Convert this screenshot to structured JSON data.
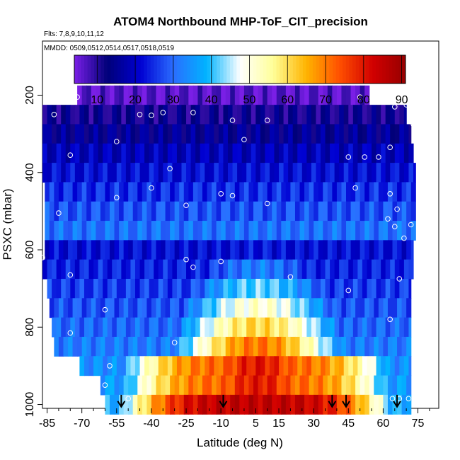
{
  "chart_data": {
    "type": "heatmap",
    "title": "ATOM4 Northbound MHP-ToF_CIT_precision",
    "flights_label": "Flts: 7,8,9,10,11,12",
    "dates_label": "MMDD: 0509,0512,0514,0517,0518,0519",
    "xlabel": "Latitude (deg N)",
    "ylabel": "PSXC (mbar)",
    "xlim": [
      -87,
      84
    ],
    "ylim": [
      1010,
      60
    ],
    "x_ticks": [
      -85,
      -70,
      -55,
      -40,
      -25,
      -10,
      5,
      15,
      30,
      45,
      60,
      75
    ],
    "x_tick_labels": [
      "-85",
      "-70",
      "-55",
      "-40",
      "-25",
      "-10",
      "5",
      "15",
      "30",
      "45",
      "60",
      "75"
    ],
    "y_ticks": [
      200,
      400,
      600,
      800,
      1000
    ],
    "y_tick_labels": [
      "200",
      "400",
      "600",
      "800",
      "1000"
    ],
    "colorbar": {
      "min": 4,
      "max": 91,
      "ticks": [
        10,
        20,
        30,
        40,
        50,
        60,
        70,
        80,
        90
      ],
      "tick_labels": [
        "10",
        "20",
        "30",
        "40",
        "50",
        "60",
        "70",
        "80",
        "90"
      ],
      "colors": [
        "#7a1fe6",
        "#000078",
        "#0000d2",
        "#2a6eff",
        "#00b4ff",
        "#ffffff",
        "#ffff99",
        "#ffb400",
        "#ff5000",
        "#d20000",
        "#960000"
      ]
    },
    "pressure_levels": [
      200,
      250,
      300,
      350,
      400,
      450,
      500,
      550,
      600,
      650,
      700,
      750,
      800,
      850,
      900,
      950,
      1000
    ],
    "row_extents": [
      [
        -72,
        54
      ],
      [
        -87,
        70
      ],
      [
        -87,
        72
      ],
      [
        -87,
        73
      ],
      [
        -87,
        74
      ],
      [
        -86,
        74
      ],
      [
        -86,
        74
      ],
      [
        -86,
        74
      ],
      [
        -86,
        73
      ],
      [
        -87,
        73
      ],
      [
        -85,
        72
      ],
      [
        -84,
        72
      ],
      [
        -83,
        72
      ],
      [
        -82,
        72
      ],
      [
        -71,
        72
      ],
      [
        -62,
        72
      ],
      [
        -60,
        72
      ]
    ],
    "field_description": "precision values (color); blue/purple aloft, warm core near surface between ~-45 and 60 deg N",
    "observation_points": [
      [
        -85,
        210
      ],
      [
        -72,
        205
      ],
      [
        -82,
        250
      ],
      [
        -45,
        250
      ],
      [
        -40,
        252
      ],
      [
        -35,
        245
      ],
      [
        -22,
        245
      ],
      [
        -5,
        265
      ],
      [
        10,
        265
      ],
      [
        0,
        315
      ],
      [
        -55,
        320
      ],
      [
        -75,
        355
      ],
      [
        45,
        360
      ],
      [
        52,
        360
      ],
      [
        58,
        360
      ],
      [
        63,
        335
      ],
      [
        -32,
        390
      ],
      [
        -55,
        465
      ],
      [
        -40,
        440
      ],
      [
        -10,
        455
      ],
      [
        -5,
        460
      ],
      [
        10,
        480
      ],
      [
        -25,
        485
      ],
      [
        48,
        440
      ],
      [
        62,
        520
      ],
      [
        65,
        540
      ],
      [
        -80,
        505
      ],
      [
        -87,
        620
      ],
      [
        -25,
        625
      ],
      [
        -22,
        645
      ],
      [
        -10,
        630
      ],
      [
        20,
        670
      ],
      [
        -75,
        665
      ],
      [
        45,
        705
      ],
      [
        63,
        455
      ],
      [
        66,
        495
      ],
      [
        -60,
        755
      ],
      [
        -75,
        815
      ],
      [
        -30,
        840
      ],
      [
        63,
        780
      ],
      [
        67,
        675
      ],
      [
        69,
        570
      ],
      [
        72,
        535
      ],
      [
        76,
        460
      ],
      [
        78,
        625
      ],
      [
        55,
        210
      ],
      [
        50,
        205
      ],
      [
        65,
        230
      ],
      [
        70,
        225
      ],
      [
        73,
        275
      ],
      [
        75,
        330
      ],
      [
        78,
        275
      ],
      [
        82,
        275
      ],
      [
        -58,
        900
      ],
      [
        -60,
        950
      ],
      [
        -50,
        985
      ],
      [
        64,
        985
      ],
      [
        67,
        985
      ],
      [
        71,
        985
      ],
      [
        75,
        990
      ],
      [
        80,
        995
      ]
    ],
    "flight_markers_lat": [
      -53,
      -9,
      38,
      44,
      66
    ]
  }
}
